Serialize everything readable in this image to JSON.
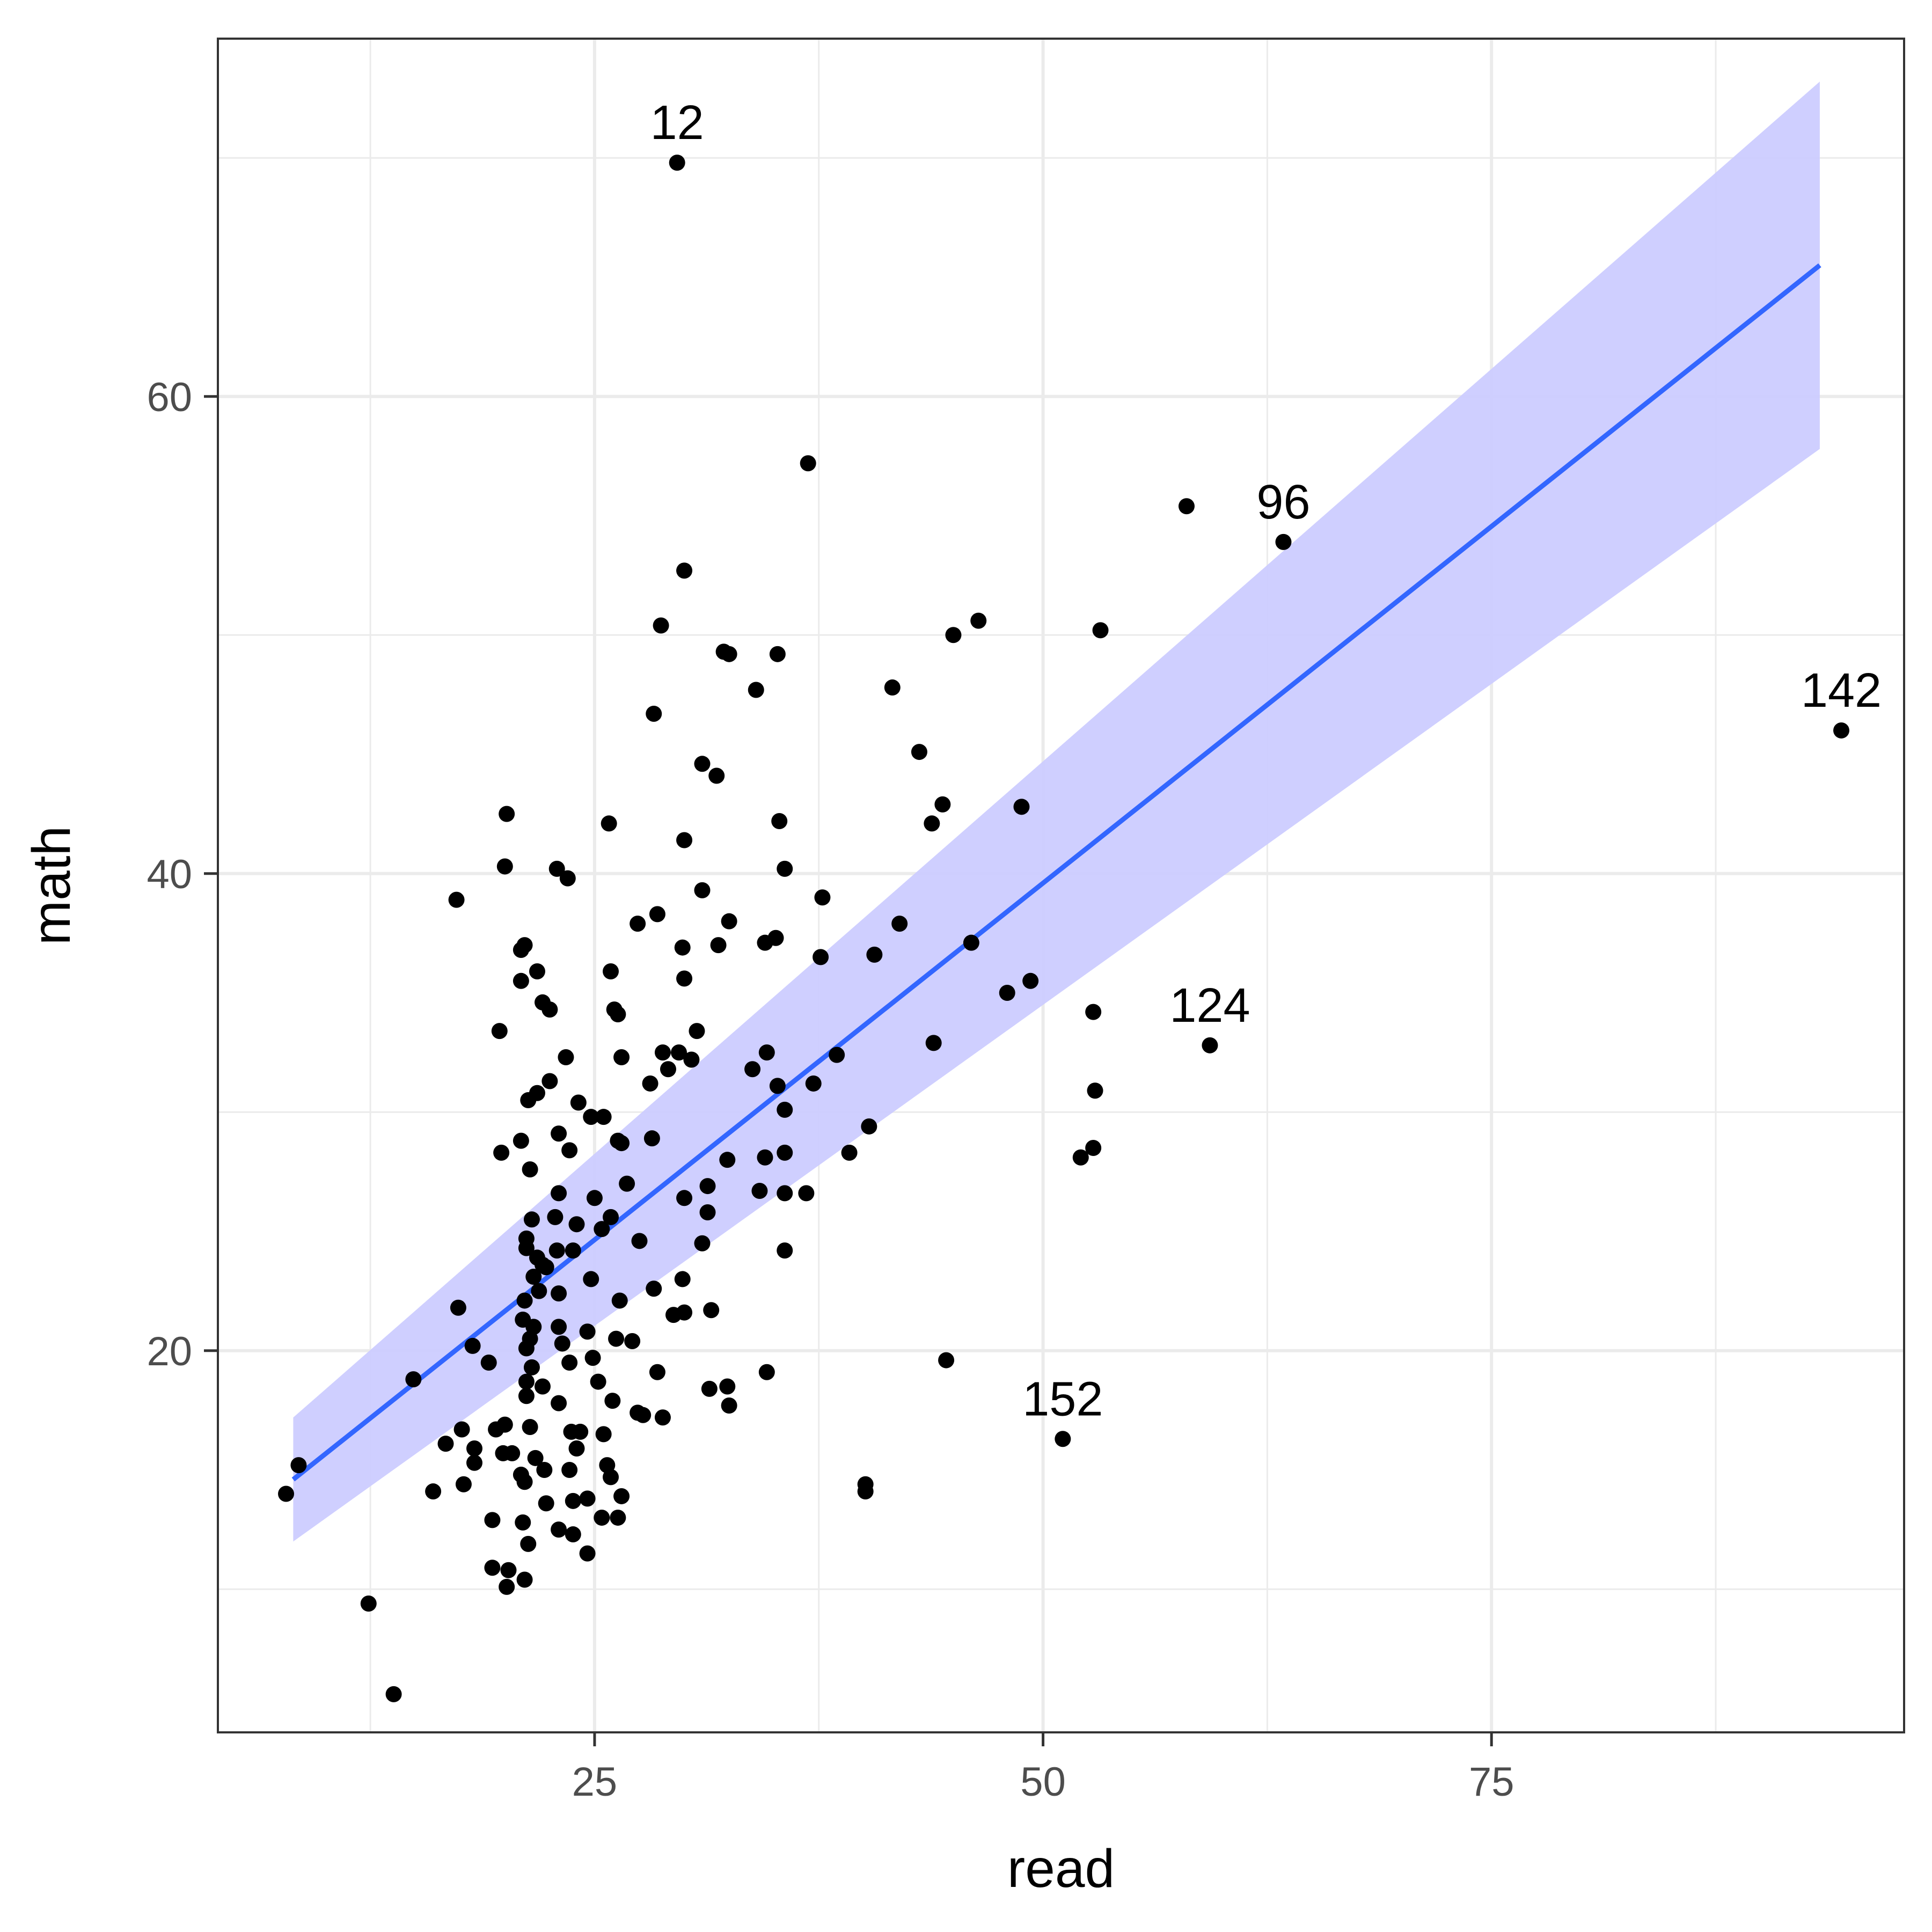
{
  "chart_data": {
    "type": "scatter",
    "title": "",
    "xlabel": "read",
    "ylabel": "math",
    "xlim": [
      4,
      98
    ],
    "ylim": [
      4,
      75
    ],
    "x_ticks": [
      25,
      50,
      75
    ],
    "x_minor": [
      12.5,
      37.5,
      62.5,
      87.5
    ],
    "y_ticks": [
      20,
      40,
      60
    ],
    "y_minor": [
      10,
      30,
      50,
      70
    ],
    "grid": true,
    "legend": "none",
    "colors": {
      "points": "#000000",
      "line": "#3366ff",
      "band": "#ccccff",
      "grid": "#ebebeb",
      "border": "#333333"
    },
    "points": [
      [
        29.6,
        69.8
      ],
      [
        36.9,
        57.2
      ],
      [
        58.0,
        55.4
      ],
      [
        63.4,
        53.9
      ],
      [
        30.0,
        52.7
      ],
      [
        28.7,
        50.4
      ],
      [
        32.2,
        49.3
      ],
      [
        32.5,
        49.2
      ],
      [
        35.2,
        49.2
      ],
      [
        34.0,
        47.7
      ],
      [
        28.3,
        46.7
      ],
      [
        31.0,
        44.6
      ],
      [
        31.8,
        44.1
      ],
      [
        43.1,
        45.1
      ],
      [
        41.6,
        47.8
      ],
      [
        45.0,
        50.0
      ],
      [
        46.4,
        50.6
      ],
      [
        53.2,
        50.2
      ],
      [
        94.5,
        46.0
      ],
      [
        44.4,
        42.9
      ],
      [
        43.8,
        42.1
      ],
      [
        48.8,
        42.8
      ],
      [
        20.1,
        42.5
      ],
      [
        25.8,
        42.1
      ],
      [
        35.3,
        42.2
      ],
      [
        30.0,
        41.4
      ],
      [
        22.9,
        40.2
      ],
      [
        20.0,
        40.3
      ],
      [
        23.5,
        39.8
      ],
      [
        35.6,
        40.2
      ],
      [
        31.0,
        39.3
      ],
      [
        37.7,
        39.0
      ],
      [
        17.3,
        38.9
      ],
      [
        28.5,
        38.3
      ],
      [
        27.4,
        37.9
      ],
      [
        32.5,
        38.0
      ],
      [
        42.0,
        37.9
      ],
      [
        35.1,
        37.3
      ],
      [
        34.5,
        37.1
      ],
      [
        31.9,
        37.0
      ],
      [
        29.9,
        36.9
      ],
      [
        21.1,
        37.0
      ],
      [
        20.9,
        36.8
      ],
      [
        37.6,
        36.5
      ],
      [
        40.6,
        36.6
      ],
      [
        46.0,
        37.1
      ],
      [
        21.8,
        35.9
      ],
      [
        25.9,
        35.9
      ],
      [
        30.0,
        35.6
      ],
      [
        20.9,
        35.5
      ],
      [
        48.0,
        35.0
      ],
      [
        49.3,
        35.5
      ],
      [
        22.1,
        34.6
      ],
      [
        22.5,
        34.3
      ],
      [
        26.1,
        34.3
      ],
      [
        26.3,
        34.1
      ],
      [
        52.8,
        34.2
      ],
      [
        30.7,
        33.4
      ],
      [
        19.7,
        33.4
      ],
      [
        43.9,
        32.9
      ],
      [
        59.3,
        32.8
      ],
      [
        23.4,
        32.3
      ],
      [
        26.5,
        32.3
      ],
      [
        28.8,
        32.5
      ],
      [
        29.7,
        32.5
      ],
      [
        30.4,
        32.2
      ],
      [
        34.6,
        32.5
      ],
      [
        33.8,
        31.8
      ],
      [
        38.5,
        32.4
      ],
      [
        29.1,
        31.8
      ],
      [
        28.1,
        31.2
      ],
      [
        21.8,
        30.8
      ],
      [
        21.3,
        30.5
      ],
      [
        22.5,
        31.3
      ],
      [
        24.1,
        30.4
      ],
      [
        35.2,
        31.1
      ],
      [
        37.2,
        31.2
      ],
      [
        52.9,
        30.9
      ],
      [
        24.8,
        29.8
      ],
      [
        25.5,
        29.8
      ],
      [
        35.6,
        30.1
      ],
      [
        23.0,
        29.1
      ],
      [
        20.9,
        28.8
      ],
      [
        26.3,
        28.8
      ],
      [
        28.2,
        28.9
      ],
      [
        23.6,
        28.4
      ],
      [
        26.5,
        28.7
      ],
      [
        40.3,
        29.4
      ],
      [
        19.8,
        28.3
      ],
      [
        21.4,
        27.6
      ],
      [
        34.5,
        28.1
      ],
      [
        35.6,
        28.3
      ],
      [
        32.4,
        28.0
      ],
      [
        39.2,
        28.3
      ],
      [
        52.1,
        28.1
      ],
      [
        52.8,
        28.5
      ],
      [
        26.8,
        27.0
      ],
      [
        31.3,
        26.9
      ],
      [
        36.8,
        26.6
      ],
      [
        35.6,
        26.6
      ],
      [
        34.2,
        26.7
      ],
      [
        30.0,
        26.4
      ],
      [
        23.0,
        26.6
      ],
      [
        25.0,
        26.4
      ],
      [
        22.8,
        25.6
      ],
      [
        31.3,
        25.8
      ],
      [
        21.5,
        25.5
      ],
      [
        24.0,
        25.3
      ],
      [
        25.9,
        25.6
      ],
      [
        25.4,
        25.1
      ],
      [
        21.2,
        24.7
      ],
      [
        27.5,
        24.6
      ],
      [
        21.2,
        24.3
      ],
      [
        31.0,
        24.5
      ],
      [
        35.6,
        24.2
      ],
      [
        22.9,
        24.2
      ],
      [
        23.8,
        24.2
      ],
      [
        21.8,
        23.9
      ],
      [
        22.1,
        23.6
      ],
      [
        24.8,
        23.0
      ],
      [
        21.6,
        23.1
      ],
      [
        22.3,
        23.5
      ],
      [
        29.9,
        23.0
      ],
      [
        28.3,
        22.6
      ],
      [
        23.0,
        22.4
      ],
      [
        21.1,
        22.1
      ],
      [
        21.9,
        22.5
      ],
      [
        26.4,
        22.1
      ],
      [
        17.4,
        21.8
      ],
      [
        29.4,
        21.5
      ],
      [
        30.0,
        21.6
      ],
      [
        31.5,
        21.7
      ],
      [
        21.0,
        21.3
      ],
      [
        21.6,
        21.0
      ],
      [
        23.0,
        21.0
      ],
      [
        24.6,
        20.8
      ],
      [
        21.4,
        20.5
      ],
      [
        23.2,
        20.3
      ],
      [
        21.2,
        20.1
      ],
      [
        26.2,
        20.5
      ],
      [
        27.1,
        20.4
      ],
      [
        18.2,
        20.2
      ],
      [
        19.1,
        19.5
      ],
      [
        23.6,
        19.5
      ],
      [
        24.9,
        19.7
      ],
      [
        21.5,
        19.3
      ],
      [
        21.2,
        18.7
      ],
      [
        22.1,
        18.5
      ],
      [
        25.2,
        18.7
      ],
      [
        34.6,
        19.1
      ],
      [
        44.6,
        19.6
      ],
      [
        28.5,
        19.1
      ],
      [
        14.9,
        18.8
      ],
      [
        21.2,
        18.1
      ],
      [
        23.0,
        17.8
      ],
      [
        26.0,
        17.9
      ],
      [
        31.4,
        18.4
      ],
      [
        32.4,
        18.5
      ],
      [
        32.5,
        17.7
      ],
      [
        27.4,
        17.4
      ],
      [
        27.7,
        17.3
      ],
      [
        28.8,
        17.2
      ],
      [
        17.6,
        16.7
      ],
      [
        19.5,
        16.7
      ],
      [
        20.0,
        16.9
      ],
      [
        21.4,
        16.8
      ],
      [
        23.7,
        16.6
      ],
      [
        24.2,
        16.6
      ],
      [
        25.5,
        16.5
      ],
      [
        16.7,
        16.1
      ],
      [
        18.3,
        15.9
      ],
      [
        19.9,
        15.7
      ],
      [
        20.4,
        15.7
      ],
      [
        21.7,
        15.5
      ],
      [
        24.0,
        15.9
      ],
      [
        22.2,
        15.0
      ],
      [
        23.6,
        15.0
      ],
      [
        25.7,
        15.2
      ],
      [
        51.1,
        16.3
      ],
      [
        8.5,
        15.2
      ],
      [
        18.3,
        15.3
      ],
      [
        20.9,
        14.8
      ],
      [
        21.1,
        14.5
      ],
      [
        25.9,
        14.7
      ],
      [
        17.7,
        14.4
      ],
      [
        16.0,
        14.1
      ],
      [
        23.8,
        13.7
      ],
      [
        24.6,
        13.8
      ],
      [
        26.5,
        13.9
      ],
      [
        40.1,
        14.4
      ],
      [
        40.1,
        14.1
      ],
      [
        22.3,
        13.6
      ],
      [
        25.4,
        13.0
      ],
      [
        26.3,
        13.0
      ],
      [
        19.3,
        12.9
      ],
      [
        21.0,
        12.8
      ],
      [
        23.0,
        12.5
      ],
      [
        23.8,
        12.3
      ],
      [
        21.3,
        11.9
      ],
      [
        24.6,
        11.5
      ],
      [
        19.3,
        10.9
      ],
      [
        20.2,
        10.8
      ],
      [
        21.1,
        10.4
      ],
      [
        20.1,
        10.1
      ],
      [
        12.4,
        9.4
      ],
      [
        13.8,
        5.6
      ],
      [
        7.8,
        14.0
      ]
    ],
    "point_labels": [
      {
        "text": "12",
        "x": 29.6,
        "y": 69.8
      },
      {
        "text": "96",
        "x": 63.4,
        "y": 53.9
      },
      {
        "text": "142",
        "x": 94.5,
        "y": 46.0
      },
      {
        "text": "124",
        "x": 59.3,
        "y": 32.8
      },
      {
        "text": "152",
        "x": 51.1,
        "y": 16.3
      }
    ],
    "fit_line": {
      "x": [
        8.2,
        93.3
      ],
      "y": [
        14.6,
        65.5
      ]
    },
    "confidence_band": {
      "x": [
        8.2,
        93.3
      ],
      "upper": [
        17.2,
        73.2
      ],
      "lower": [
        12.0,
        57.8
      ]
    }
  }
}
